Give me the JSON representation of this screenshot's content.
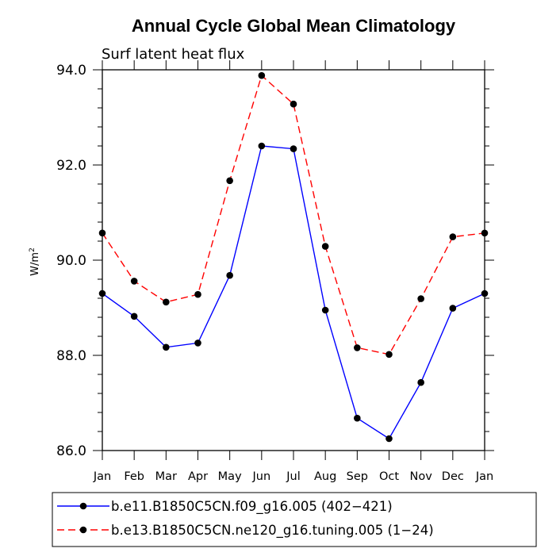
{
  "chart_data": {
    "type": "line",
    "title": "Annual Cycle Global Mean Climatology",
    "subtitle": "Surf latent heat flux",
    "ylabel": "W/m",
    "ylabel_sup": "2",
    "xlabel": "",
    "ylim": [
      86.0,
      94.0
    ],
    "yticks": [
      "86.0",
      "88.0",
      "90.0",
      "92.0",
      "94.0"
    ],
    "categories": [
      "Jan",
      "Feb",
      "Mar",
      "Apr",
      "May",
      "Jun",
      "Jul",
      "Aug",
      "Sep",
      "Oct",
      "Nov",
      "Dec",
      "Jan"
    ],
    "series": [
      {
        "name": "b.e11.B1850C5CN.f09_g16.005 (402−421)",
        "color": "#0000ff",
        "dash": "solid",
        "values": [
          89.3,
          88.82,
          88.17,
          88.26,
          89.68,
          92.4,
          92.34,
          88.95,
          86.68,
          86.25,
          87.43,
          88.99,
          89.3
        ]
      },
      {
        "name": "b.e13.B1850C5CN.ne120_g16.tuning.005 (1−24)",
        "color": "#ff0000",
        "dash": "dashed",
        "values": [
          90.57,
          89.56,
          89.12,
          89.28,
          91.67,
          93.88,
          93.28,
          90.29,
          88.16,
          88.02,
          89.19,
          90.49,
          90.57
        ]
      }
    ],
    "grid": false,
    "legend_position": "bottom"
  }
}
